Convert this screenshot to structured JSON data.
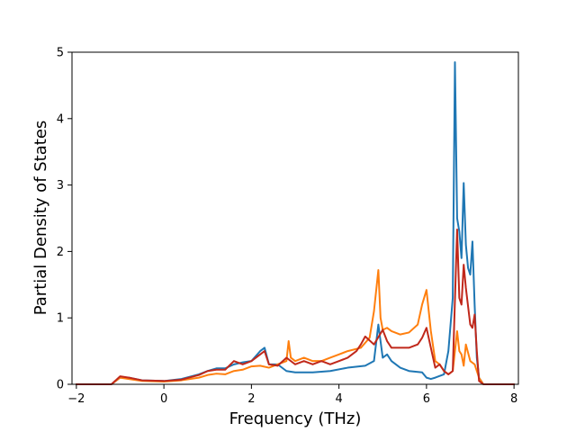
{
  "chart_data": {
    "type": "line",
    "title": "",
    "xlabel": "Frequency (THz)",
    "ylabel": "Partial Density of States",
    "xlim": [
      -2.1,
      8.1
    ],
    "ylim": [
      0,
      5
    ],
    "xticks": [
      -2,
      0,
      2,
      4,
      6,
      8
    ],
    "yticks": [
      0,
      1,
      2,
      3,
      4,
      5
    ],
    "xtick_labels": [
      "−2",
      "0",
      "2",
      "4",
      "6",
      "8"
    ],
    "ytick_labels": [
      "0",
      "1",
      "2",
      "3",
      "4",
      "5"
    ],
    "grid": false,
    "legend": "none",
    "series": [
      {
        "color": "#1f77b4",
        "x": [
          -2.0,
          -1.2,
          -1.0,
          -0.8,
          -0.5,
          0.0,
          0.4,
          0.8,
          1.0,
          1.2,
          1.4,
          1.6,
          1.8,
          2.0,
          2.2,
          2.3,
          2.4,
          2.6,
          2.8,
          3.0,
          3.4,
          3.8,
          4.2,
          4.6,
          4.8,
          4.9,
          5.0,
          5.1,
          5.2,
          5.4,
          5.6,
          5.9,
          6.0,
          6.1,
          6.2,
          6.4,
          6.5,
          6.6,
          6.65,
          6.7,
          6.75,
          6.8,
          6.85,
          6.9,
          6.95,
          7.0,
          7.05,
          7.1,
          7.15,
          7.2,
          7.3,
          8.0
        ],
        "values": [
          0.0,
          0.0,
          0.1,
          0.1,
          0.06,
          0.05,
          0.08,
          0.15,
          0.2,
          0.24,
          0.24,
          0.3,
          0.33,
          0.35,
          0.5,
          0.55,
          0.3,
          0.3,
          0.2,
          0.18,
          0.18,
          0.2,
          0.25,
          0.28,
          0.35,
          0.9,
          0.4,
          0.45,
          0.35,
          0.25,
          0.2,
          0.18,
          0.1,
          0.08,
          0.1,
          0.15,
          0.5,
          1.3,
          4.85,
          2.5,
          2.3,
          1.9,
          3.03,
          2.1,
          1.75,
          1.65,
          2.15,
          1.2,
          0.4,
          0.1,
          0.0,
          0.0
        ]
      },
      {
        "color": "#ff7f0e",
        "x": [
          -2.0,
          -1.2,
          -1.0,
          -0.8,
          -0.5,
          0.0,
          0.4,
          0.8,
          1.0,
          1.2,
          1.4,
          1.6,
          1.8,
          2.0,
          2.2,
          2.4,
          2.6,
          2.8,
          2.85,
          2.9,
          3.0,
          3.2,
          3.4,
          3.6,
          3.8,
          4.0,
          4.2,
          4.5,
          4.7,
          4.8,
          4.9,
          4.95,
          5.0,
          5.1,
          5.2,
          5.4,
          5.6,
          5.8,
          5.9,
          6.0,
          6.1,
          6.2,
          6.3,
          6.4,
          6.5,
          6.6,
          6.7,
          6.75,
          6.8,
          6.85,
          6.9,
          7.0,
          7.1,
          7.2,
          7.3,
          8.0
        ],
        "values": [
          0.0,
          0.0,
          0.1,
          0.08,
          0.05,
          0.04,
          0.06,
          0.1,
          0.14,
          0.16,
          0.15,
          0.2,
          0.22,
          0.27,
          0.28,
          0.25,
          0.3,
          0.35,
          0.65,
          0.4,
          0.35,
          0.4,
          0.35,
          0.35,
          0.4,
          0.45,
          0.5,
          0.55,
          0.7,
          1.1,
          1.72,
          1.0,
          0.82,
          0.85,
          0.8,
          0.75,
          0.78,
          0.9,
          1.2,
          1.42,
          0.8,
          0.35,
          0.3,
          0.2,
          0.15,
          0.2,
          0.8,
          0.5,
          0.45,
          0.28,
          0.6,
          0.35,
          0.3,
          0.1,
          0.0,
          0.0
        ]
      },
      {
        "color": "#c0281b",
        "x": [
          -2.0,
          -1.2,
          -1.0,
          -0.8,
          -0.5,
          0.0,
          0.4,
          0.8,
          1.0,
          1.2,
          1.4,
          1.6,
          1.8,
          2.0,
          2.2,
          2.3,
          2.4,
          2.6,
          2.8,
          3.0,
          3.2,
          3.4,
          3.6,
          3.8,
          4.0,
          4.2,
          4.4,
          4.5,
          4.6,
          4.8,
          5.0,
          5.1,
          5.2,
          5.4,
          5.6,
          5.8,
          5.9,
          6.0,
          6.1,
          6.2,
          6.3,
          6.4,
          6.5,
          6.6,
          6.7,
          6.75,
          6.8,
          6.85,
          6.9,
          7.0,
          7.05,
          7.1,
          7.15,
          7.2,
          7.3,
          8.0
        ],
        "values": [
          0.0,
          0.0,
          0.12,
          0.1,
          0.06,
          0.05,
          0.07,
          0.14,
          0.2,
          0.22,
          0.22,
          0.35,
          0.3,
          0.35,
          0.45,
          0.5,
          0.3,
          0.28,
          0.4,
          0.3,
          0.35,
          0.3,
          0.35,
          0.3,
          0.35,
          0.4,
          0.5,
          0.6,
          0.72,
          0.6,
          0.82,
          0.65,
          0.55,
          0.55,
          0.55,
          0.6,
          0.7,
          0.85,
          0.55,
          0.25,
          0.3,
          0.2,
          0.15,
          0.2,
          2.33,
          1.3,
          1.2,
          1.8,
          1.45,
          0.9,
          0.85,
          1.05,
          0.5,
          0.05,
          0.0,
          0.0
        ]
      }
    ]
  }
}
